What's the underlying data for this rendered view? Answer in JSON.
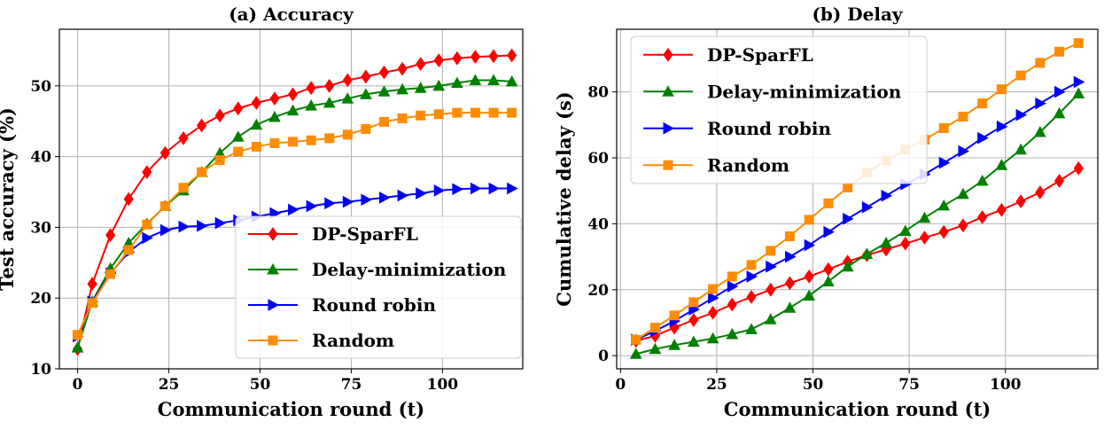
{
  "chart_data": [
    {
      "type": "line",
      "title": "(a) Accuracy",
      "xlabel": "Communication round (t)",
      "ylabel": "Test accuracy (%)",
      "xlim": [
        -5,
        122
      ],
      "ylim": [
        10,
        58
      ],
      "xticks": [
        0,
        25,
        50,
        75,
        100
      ],
      "yticks": [
        10,
        20,
        30,
        40,
        50
      ],
      "xtick_labels": [
        "0",
        "25",
        "50",
        "75",
        "100"
      ],
      "ytick_labels": [
        "10",
        "20",
        "30",
        "40",
        "50"
      ],
      "grid": true,
      "legend_position": "lower-right",
      "x": [
        0,
        4,
        9,
        14,
        19,
        24,
        29,
        34,
        39,
        44,
        49,
        54,
        59,
        64,
        69,
        74,
        79,
        84,
        89,
        94,
        99,
        104,
        109,
        114,
        119
      ],
      "series": [
        {
          "name": "DP-SparFL",
          "color": "#ff0000",
          "marker": "diamond",
          "values": [
            12.8,
            22.0,
            28.9,
            34.0,
            37.8,
            40.5,
            42.6,
            44.4,
            45.8,
            46.8,
            47.6,
            48.2,
            48.8,
            49.7,
            50.0,
            50.8,
            51.3,
            51.9,
            52.4,
            53.1,
            53.6,
            53.9,
            54.1,
            54.2,
            54.3
          ]
        },
        {
          "name": "Delay-minimization",
          "color": "#008000",
          "marker": "triangle-up",
          "values": [
            13.0,
            19.5,
            24.2,
            27.8,
            30.5,
            33.0,
            35.2,
            37.8,
            40.5,
            42.8,
            44.5,
            45.6,
            46.5,
            47.2,
            47.6,
            48.2,
            48.8,
            49.2,
            49.5,
            49.7,
            50.0,
            50.4,
            50.8,
            50.8,
            50.6
          ]
        },
        {
          "name": "Round robin",
          "color": "#0000ff",
          "marker": "triangle-right",
          "values": [
            14.6,
            19.5,
            23.5,
            26.5,
            28.5,
            29.6,
            30.1,
            30.2,
            30.6,
            31.0,
            31.5,
            32.0,
            32.5,
            33.0,
            33.4,
            33.6,
            33.9,
            34.2,
            34.5,
            34.8,
            35.2,
            35.4,
            35.5,
            35.5,
            35.5
          ]
        },
        {
          "name": "Random",
          "color": "#ff8c00",
          "marker": "square",
          "values": [
            14.8,
            19.3,
            23.4,
            26.8,
            30.4,
            33.0,
            35.6,
            37.8,
            39.5,
            40.7,
            41.4,
            41.9,
            42.1,
            42.3,
            42.6,
            43.1,
            43.9,
            44.9,
            45.4,
            45.8,
            46.0,
            46.2,
            46.2,
            46.2,
            46.2
          ]
        }
      ]
    },
    {
      "type": "line",
      "title": "(b) Delay",
      "xlabel": "Communication round (t)",
      "ylabel": "Cumulative delay (s)",
      "xlim": [
        -1,
        124
      ],
      "ylim": [
        -4,
        99
      ],
      "xticks": [
        0,
        25,
        50,
        75,
        100
      ],
      "yticks": [
        0,
        20,
        40,
        60,
        80
      ],
      "xtick_labels": [
        "0",
        "25",
        "50",
        "75",
        "100"
      ],
      "ytick_labels": [
        "0",
        "20",
        "40",
        "60",
        "80"
      ],
      "grid": true,
      "legend_position": "upper-left",
      "x": [
        4,
        9,
        14,
        19,
        24,
        29,
        34,
        39,
        44,
        49,
        54,
        59,
        64,
        69,
        74,
        79,
        84,
        89,
        94,
        99,
        104,
        109,
        114,
        119
      ],
      "series": [
        {
          "name": "DP-SparFL",
          "color": "#ff0000",
          "marker": "diamond",
          "values": [
            4.5,
            6.0,
            8.5,
            10.8,
            13.0,
            15.5,
            17.8,
            20.0,
            22.0,
            24.0,
            26.2,
            28.5,
            30.5,
            32.2,
            34.0,
            35.8,
            37.5,
            39.5,
            42.0,
            44.2,
            46.8,
            49.5,
            53.0,
            56.8
          ]
        },
        {
          "name": "Delay-minimization",
          "color": "#008000",
          "marker": "triangle-up",
          "values": [
            0.5,
            2.0,
            3.2,
            4.2,
            5.2,
            6.5,
            8.0,
            11.0,
            14.5,
            18.2,
            22.5,
            27.0,
            30.8,
            34.2,
            37.8,
            41.8,
            45.5,
            49.0,
            53.0,
            57.8,
            62.5,
            67.8,
            73.5,
            79.5
          ]
        },
        {
          "name": "Round robin",
          "color": "#0000ff",
          "marker": "triangle-right",
          "values": [
            4.8,
            7.5,
            10.5,
            14.0,
            17.5,
            21.0,
            24.0,
            27.0,
            30.0,
            33.5,
            37.5,
            41.5,
            45.0,
            48.5,
            52.0,
            55.0,
            58.5,
            62.0,
            66.0,
            69.5,
            73.0,
            76.5,
            80.0,
            83.0
          ]
        },
        {
          "name": "Random",
          "color": "#ff8c00",
          "marker": "square",
          "values": [
            4.8,
            8.5,
            12.2,
            16.2,
            20.2,
            24.0,
            27.5,
            31.8,
            36.2,
            41.2,
            46.2,
            51.0,
            55.5,
            59.2,
            62.5,
            65.5,
            69.0,
            72.5,
            76.5,
            80.8,
            85.0,
            88.8,
            92.2,
            94.8
          ]
        }
      ]
    }
  ]
}
